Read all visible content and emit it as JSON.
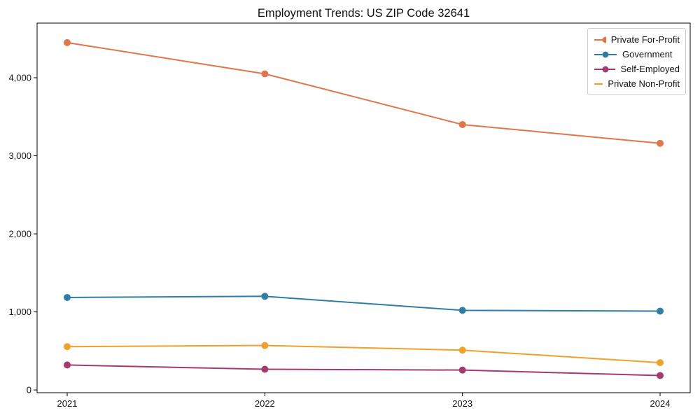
{
  "figure": {
    "title": "Employment Trends: US ZIP Code 32641"
  },
  "chart_data": {
    "type": "line",
    "title": "Employment Trends: US ZIP Code 32641",
    "categories": [
      "2021",
      "2022",
      "2023",
      "2024"
    ],
    "series": [
      {
        "name": "Private For-Profit",
        "color": "#e0764a",
        "values": [
          4450,
          4050,
          3400,
          3160
        ]
      },
      {
        "name": "Government",
        "color": "#2e7fa5",
        "values": [
          1185,
          1200,
          1020,
          1010
        ]
      },
      {
        "name": "Self-Employed",
        "color": "#a53a71",
        "values": [
          320,
          265,
          255,
          185
        ]
      },
      {
        "name": "Private Non-Profit",
        "color": "#f2a02c",
        "values": [
          555,
          570,
          510,
          350
        ]
      }
    ],
    "xlabel": "",
    "ylabel": "",
    "ylim": [
      -35,
      4700
    ],
    "yticks": [
      0,
      1000,
      2000,
      3000,
      4000
    ],
    "xtick_labels": [
      "2021",
      "2022",
      "2023",
      "2024"
    ],
    "legend_position": "upper right",
    "grid": false,
    "marker": "circle",
    "frame_color": "#000000"
  }
}
